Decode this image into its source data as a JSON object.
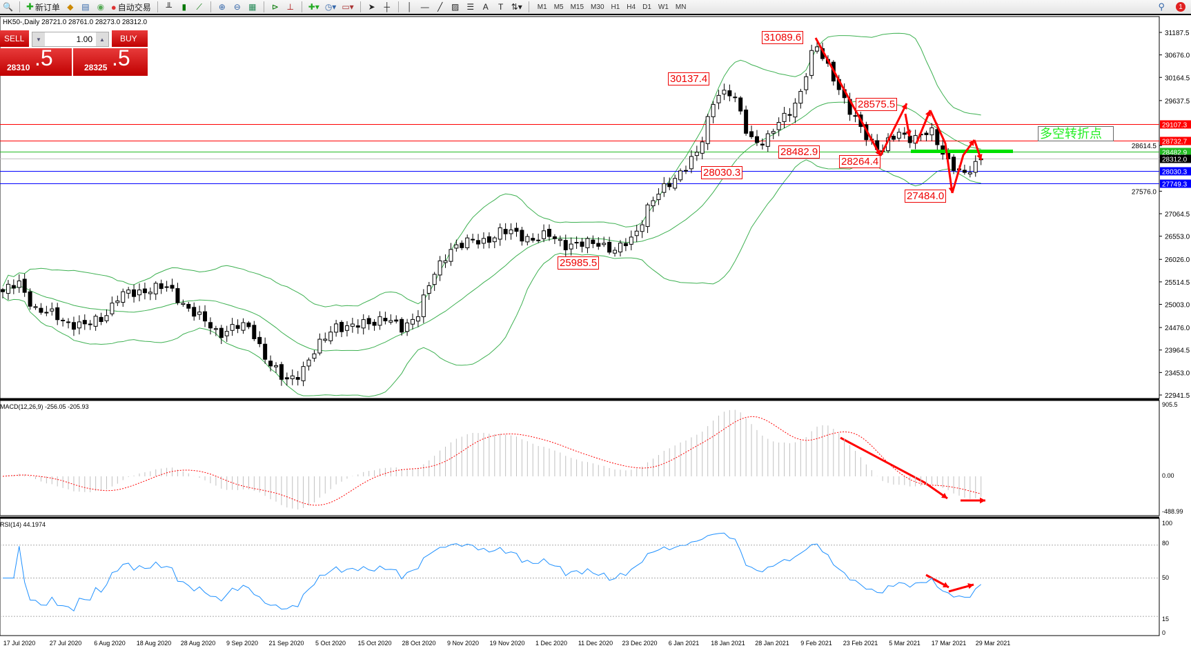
{
  "toolbar": {
    "new_order": "新订单",
    "auto_trade": "自动交易",
    "timeframes": [
      "M1",
      "M5",
      "M15",
      "M30",
      "H1",
      "H4",
      "D1",
      "W1",
      "MN"
    ],
    "notifications": "1"
  },
  "chart": {
    "symbol_info": "HK50-,Daily  28721.0 28761.0 28273.0 28312.0"
  },
  "trade_panel": {
    "sell_label": "SELL",
    "buy_label": "BUY",
    "lots": "1.00",
    "sell_small": "28310",
    "sell_big": ".5",
    "buy_small": "28325",
    "buy_big": ".5"
  },
  "price_axis": [
    "31187.5",
    "30676.0",
    "30164.5",
    "29637.5",
    "28614.5",
    "27576.0",
    "27064.5",
    "26553.0",
    "26026.0",
    "25514.5",
    "25003.0",
    "24476.0",
    "23964.5",
    "23453.0",
    "22941.5"
  ],
  "price_axis_values": [
    31187.5,
    30676.0,
    30164.5,
    29637.5,
    28614.5,
    27576.0,
    27064.5,
    26553.0,
    26026.0,
    25514.5,
    25003.0,
    24476.0,
    23964.5,
    23453.0,
    22941.5
  ],
  "hlines": [
    {
      "label": "29107.3",
      "value": 29107.3,
      "color": "#ff0000"
    },
    {
      "label": "28732.7",
      "value": 28732.7,
      "color": "#ff0000"
    },
    {
      "label": "28482.9",
      "value": 28482.9,
      "color": "#22bb22"
    },
    {
      "label": "28312.0",
      "value": 28312.0,
      "color": "#000000",
      "line": "#c0c0c0"
    },
    {
      "label": "28030.3",
      "value": 28030.3,
      "color": "#0000ff"
    },
    {
      "label": "27749.3",
      "value": 27749.3,
      "color": "#0000ff"
    }
  ],
  "annotations": [
    "31089.6",
    "30137.4",
    "28575.5",
    "28482.9",
    "28264.4",
    "28030.3",
    "27484.0",
    "25985.5"
  ],
  "pivot_text": "多空转折点",
  "price_closes": [
    25290,
    25460,
    24900,
    24750,
    24600,
    24500,
    24700,
    25200,
    25250,
    25400,
    25350,
    25000,
    24650,
    24350,
    24500,
    24450,
    23700,
    23230,
    23500,
    24000,
    24550,
    24450,
    24600,
    24700,
    24420,
    24800,
    25650,
    26300,
    26400,
    26450,
    26650,
    26600,
    26500,
    26550,
    26380,
    26350,
    26420,
    26200,
    26500,
    27300,
    27650,
    28100,
    28450,
    29850,
    29800,
    28800,
    28700,
    29200,
    29700,
    30900,
    30300,
    29400,
    28900,
    28480,
    28900,
    28800,
    28900,
    28300,
    27900,
    28312
  ],
  "macd": {
    "label": "MACD(12,26,9) -256.05 -205.93",
    "axis": [
      "905.5",
      "0.00",
      "-488.99"
    ]
  },
  "rsi": {
    "label": "RSI(14) 44.1974",
    "axis": [
      "100",
      "80",
      "50",
      "15",
      "0"
    ],
    "levels": [
      80,
      50,
      15
    ]
  },
  "dates": [
    "17 Jul 2020",
    "27 Jul 2020",
    "6 Aug 2020",
    "18 Aug 2020",
    "28 Aug 2020",
    "9 Sep 2020",
    "21 Sep 2020",
    "5 Oct 2020",
    "15 Oct 2020",
    "28 Oct 2020",
    "9 Nov 2020",
    "19 Nov 2020",
    "1 Dec 2020",
    "11 Dec 2020",
    "23 Dec 2020",
    "6 Jan 2021",
    "18 Jan 2021",
    "28 Jan 2021",
    "9 Feb 2021",
    "23 Feb 2021",
    "5 Mar 2021",
    "17 Mar 2021",
    "29 Mar 2021"
  ],
  "colors": {
    "bands": "#3cb050",
    "macd_signal": "#ff0000",
    "rsi": "#1e90ff",
    "arrows": "#ff0000"
  }
}
